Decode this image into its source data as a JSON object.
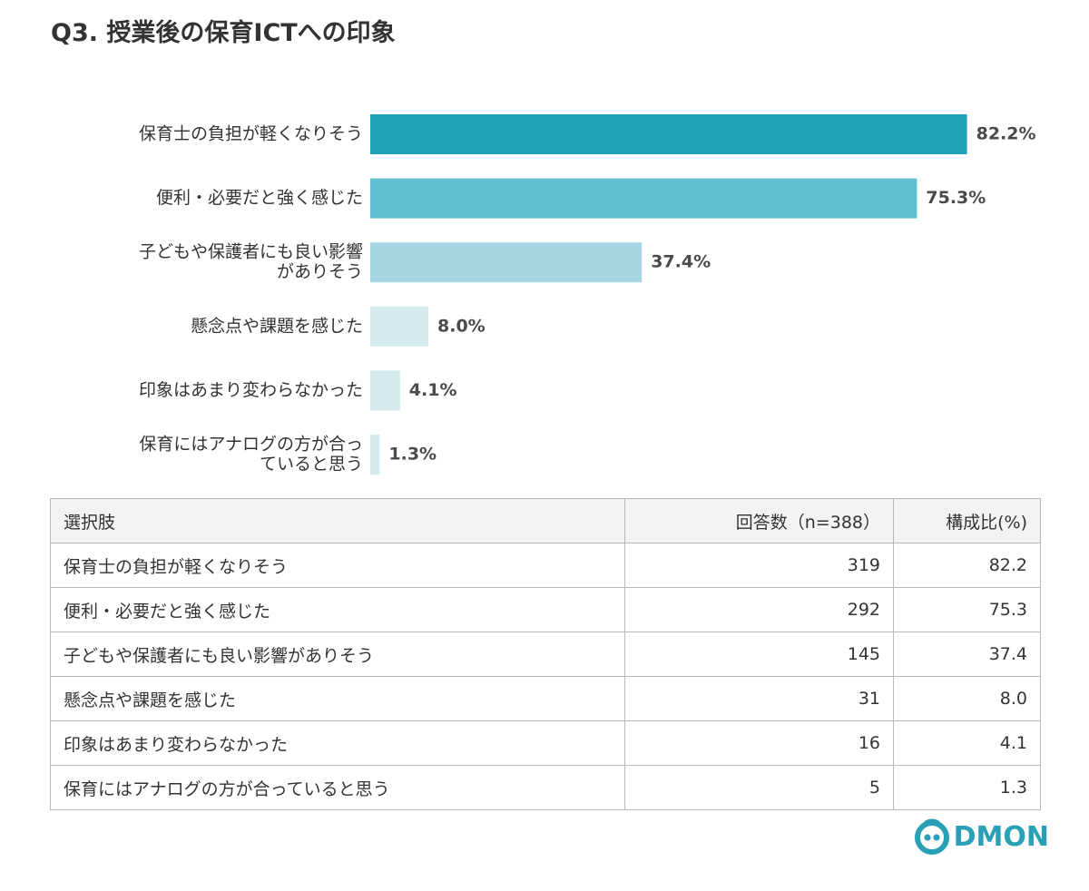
{
  "title": "Q3. 授業後の保育ICTへの印象",
  "chart_data": {
    "type": "bar",
    "orientation": "horizontal",
    "title": "Q3. 授業後の保育ICTへの印象",
    "categories": [
      [
        "保育士の負担が軽くなりそう"
      ],
      [
        "便利・必要だと強く感じた"
      ],
      [
        "子どもや保護者にも良い影響",
        "がありそう"
      ],
      [
        "懸念点や課題を感じた"
      ],
      [
        "印象はあまり変わらなかった"
      ],
      [
        "保育にはアナログの方が合っ",
        "ていると思う"
      ]
    ],
    "values": [
      82.2,
      75.3,
      37.4,
      8.0,
      4.1,
      1.3
    ],
    "value_labels": [
      "82.2%",
      "75.3%",
      "37.4%",
      "8.0%",
      "4.1%",
      "1.3%"
    ],
    "colors": [
      "#1fa3b7",
      "#5fc0cf",
      "#a6d6e2",
      "#d3ebed",
      "#d3ebed",
      "#d3ebed"
    ],
    "xlim": [
      0,
      100
    ],
    "grid": false,
    "legend": "none"
  },
  "table": {
    "headers": [
      "選択肢",
      "回答数（n=388）",
      "構成比(%)"
    ],
    "rows": [
      [
        "保育士の負担が軽くなりそう",
        "319",
        "82.2"
      ],
      [
        "便利・必要だと強く感じた",
        "292",
        "75.3"
      ],
      [
        "子どもや保護者にも良い影響がありそう",
        "145",
        "37.4"
      ],
      [
        "懸念点や課題を感じた",
        "31",
        "8.0"
      ],
      [
        "印象はあまり変わらなかった",
        "16",
        "4.1"
      ],
      [
        "保育にはアナログの方が合っていると思う",
        "5",
        "1.3"
      ]
    ]
  },
  "logo": {
    "text": "DMON",
    "color": "#2aa0b7"
  }
}
